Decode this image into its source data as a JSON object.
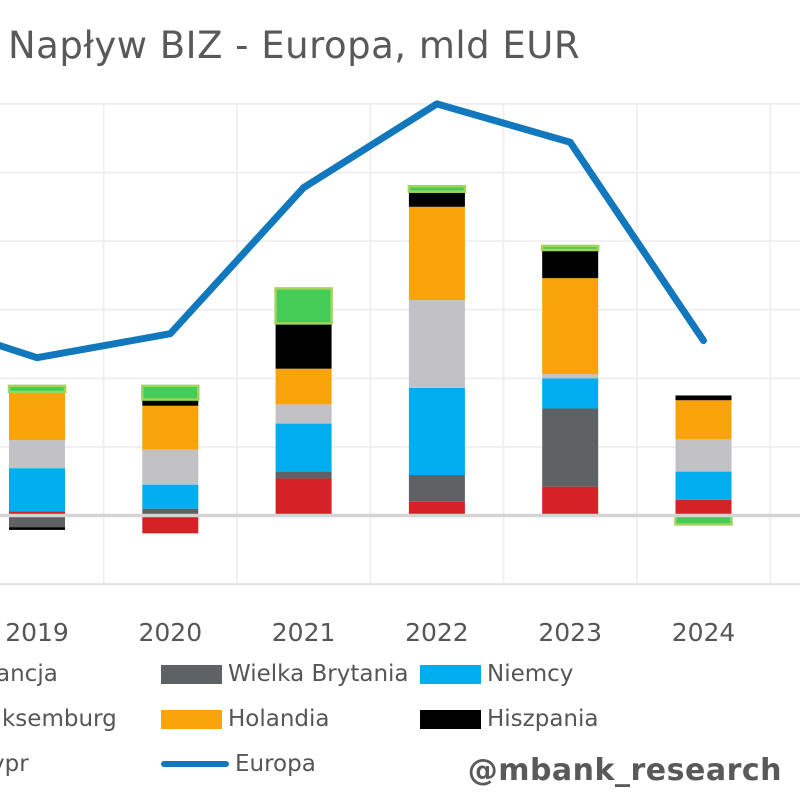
{
  "title": "Napływ BIZ - Europa, mld EUR",
  "watermark": "@mbank_research",
  "colors": {
    "francja": "#d62127",
    "wielka_brytania": "#5e6265",
    "niemcy": "#00aeef",
    "luksemburg": "#c2c2c6",
    "holandia": "#f9a30b",
    "hiszpania": "#000000",
    "cypr": "#43cd56",
    "cypr_border": "#a2d45a",
    "europa_line": "#1178be",
    "title_text": "#58595b",
    "axis_text": "#555658",
    "gridline": "#ededed",
    "plot_edge": "#e3e3e3",
    "zero_line": "#d4d4d4",
    "background": "#ffffff"
  },
  "x_axis": {
    "tick_labels": [
      "2019",
      "2020",
      "2021",
      "2022",
      "2023",
      "2024"
    ]
  },
  "chart_data": {
    "type": "bar",
    "subtype": "stacked bars with line overlay",
    "title": "Napływ BIZ - Europa, mld EUR",
    "unit": "mld EUR",
    "categories": [
      2019,
      2020,
      2021,
      2022,
      2023,
      2024
    ],
    "series": [
      {
        "name": "Francja",
        "color": "#d62127",
        "values": [
          6,
          -26,
          54,
          20,
          42,
          23
        ]
      },
      {
        "name": "Wielka Brytania",
        "color": "#5e6265",
        "values": [
          -17,
          10,
          10,
          39,
          114,
          0
        ]
      },
      {
        "name": "Niemcy",
        "color": "#00aeef",
        "values": [
          63,
          35,
          70,
          127,
          44,
          41
        ]
      },
      {
        "name": "Luksemburg",
        "color": "#c2c2c6",
        "values": [
          41,
          51,
          28,
          128,
          6,
          47
        ]
      },
      {
        "name": "Holandia",
        "color": "#f9a30b",
        "values": [
          70,
          64,
          52,
          136,
          140,
          57
        ]
      },
      {
        "name": "Hiszpania",
        "color": "#000000",
        "values": [
          -4,
          9,
          66,
          22,
          41,
          7
        ]
      },
      {
        "name": "Cypr",
        "color": "#43cd56",
        "values": [
          9,
          20,
          51,
          8,
          6,
          -13
        ]
      }
    ],
    "line_series": {
      "name": "Europa",
      "color": "#1178be",
      "x": [
        2018,
        2019,
        2020,
        2021,
        2022,
        2023,
        2024
      ],
      "values": [
        293,
        230,
        265,
        478,
        600,
        544,
        255
      ],
      "note": "2018 point lies off the cropped left edge; only the entering segment is visible"
    },
    "ylim_visible": [
      -100,
      612
    ],
    "gridline_step": 100,
    "grid": true,
    "legend_position": "bottom",
    "notes": "Image is cropped on the left: y-axis tick labels and the 2018 bar are not visible. Values estimated at 100 mld EUR per gridline."
  },
  "legend": {
    "items": [
      {
        "label": "Francja",
        "visible_text": "ancja",
        "type": "patch",
        "row": 0,
        "col": 0,
        "cropped": true
      },
      {
        "label": "Wielka Brytania",
        "visible_text": "Wielka Brytania",
        "type": "patch",
        "row": 0,
        "col": 1,
        "cropped": false
      },
      {
        "label": "Niemcy",
        "visible_text": "Niemcy",
        "type": "patch",
        "row": 0,
        "col": 2,
        "cropped": false
      },
      {
        "label": "Luksemburg",
        "visible_text": "ksemburg",
        "type": "patch",
        "row": 1,
        "col": 0,
        "cropped": true
      },
      {
        "label": "Holandia",
        "visible_text": "Holandia",
        "type": "patch",
        "row": 1,
        "col": 1,
        "cropped": false
      },
      {
        "label": "Hiszpania",
        "visible_text": "Hiszpania",
        "type": "patch",
        "row": 1,
        "col": 2,
        "cropped": false
      },
      {
        "label": "Cypr",
        "visible_text": "pr",
        "type": "patch",
        "row": 2,
        "col": 0,
        "cropped": true
      },
      {
        "label": "Europa",
        "visible_text": "Europa",
        "type": "line",
        "row": 2,
        "col": 1,
        "cropped": false
      }
    ]
  }
}
